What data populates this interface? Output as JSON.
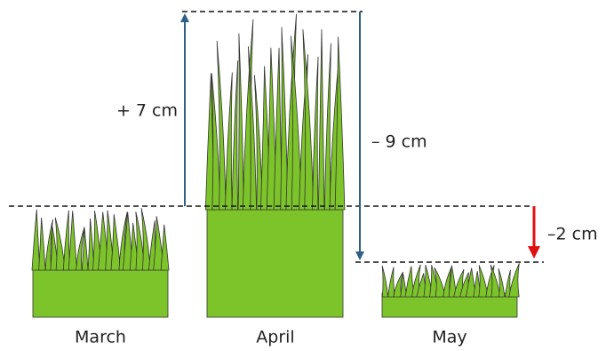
{
  "months": [
    {
      "label": "March"
    },
    {
      "label": "April"
    },
    {
      "label": "May"
    }
  ],
  "changes": [
    {
      "label": "+ 7 cm"
    },
    {
      "label": "– 9 cm"
    },
    {
      "label": "–2 cm"
    }
  ]
}
